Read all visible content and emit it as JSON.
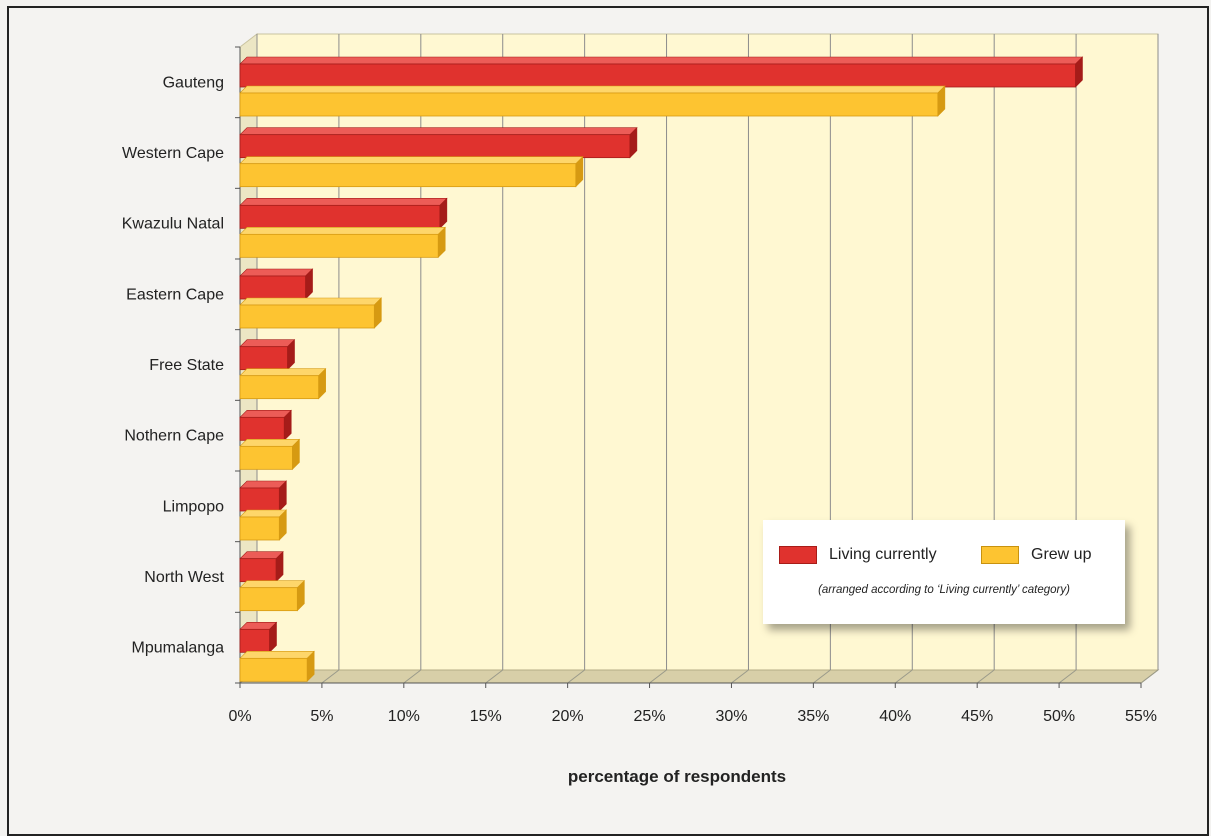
{
  "chart_data": {
    "type": "bar",
    "orientation": "horizontal",
    "categories": [
      "Gauteng",
      "Western Cape",
      "Kwazulu Natal",
      "Eastern Cape",
      "Free State",
      "Nothern Cape",
      "Limpopo",
      "North West",
      "Mpumalanga"
    ],
    "series": [
      {
        "name": "Living currently",
        "color": "#e0322e",
        "values": [
          51,
          23.8,
          12.2,
          4,
          2.9,
          2.7,
          2.4,
          2.2,
          1.8
        ]
      },
      {
        "name": "Grew up",
        "color": "#fdc431",
        "values": [
          42.6,
          20.5,
          12.1,
          8.2,
          4.8,
          3.2,
          2.4,
          3.5,
          4.1
        ]
      }
    ],
    "xlabel": "percentage of respondents",
    "ylabel": "",
    "xlim": [
      0,
      55
    ],
    "x_ticks": [
      "0%",
      "5%",
      "10%",
      "15%",
      "20%",
      "25%",
      "30%",
      "35%",
      "40%",
      "45%",
      "50%",
      "55%"
    ],
    "grid": true,
    "legend_note": "(arranged according to ‘Living currently’ category)",
    "legend_position": "bottom-right",
    "style": "3d"
  }
}
